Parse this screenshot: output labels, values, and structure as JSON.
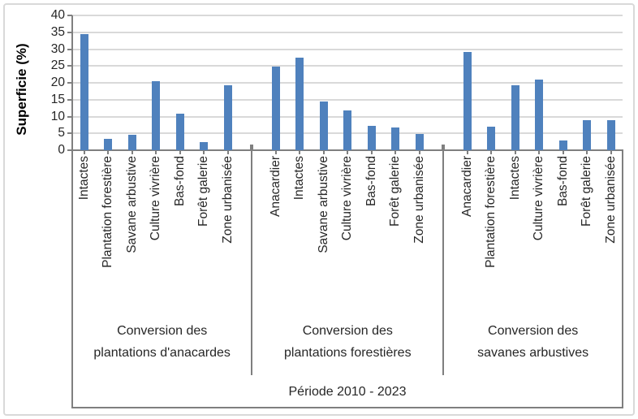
{
  "chart_data": {
    "type": "bar",
    "title": "",
    "ylabel": "Superficie (%)",
    "xlabel": "Période 2010 - 2023",
    "ylim": [
      0,
      40
    ],
    "yticks": [
      0,
      5,
      10,
      15,
      20,
      25,
      30,
      35,
      40
    ],
    "grid": true,
    "legend": "none",
    "bar_color": "#4F81BD",
    "groups": [
      {
        "label": "Conversion des plantations d'anacardes",
        "label_lines": [
          "Conversion des",
          "plantations d'anacardes"
        ],
        "categories": [
          "Intactes",
          "Plantation forestière",
          "Savane arbustive",
          "Culture vivrière",
          "Bas-fond",
          "Forêt galerie",
          "Zone urbanisée"
        ],
        "values": [
          34.4,
          3.4,
          4.7,
          20.5,
          10.9,
          2.5,
          19.3
        ]
      },
      {
        "label": "Conversion des plantations forestières",
        "label_lines": [
          "Conversion des",
          "plantations forestières"
        ],
        "categories": [
          "Anacardier",
          "Intactes",
          "Savane arbustive",
          "Culture vivrière",
          "Bas-fond",
          "Forêt galerie",
          "Zone urbanisée"
        ],
        "values": [
          24.9,
          27.6,
          14.5,
          11.9,
          7.2,
          6.8,
          4.9
        ]
      },
      {
        "label": "Conversion des savanes arbustives",
        "label_lines": [
          "Conversion des",
          "savanes arbustives"
        ],
        "categories": [
          "Anacardier",
          "Plantation forestière",
          "Intactes",
          "Culture vivrière",
          "Bas-fond",
          "Forêt galerie",
          "Zone urbanisée"
        ],
        "values": [
          29.2,
          7.0,
          19.3,
          21.0,
          2.8,
          9.0,
          9.0
        ]
      }
    ]
  },
  "colors": {
    "bar": "#4F81BD",
    "axis": "#7F7F7F",
    "gridline": "#D9D9D9",
    "text": "#262626",
    "figure_border": "#D9D9D9"
  }
}
